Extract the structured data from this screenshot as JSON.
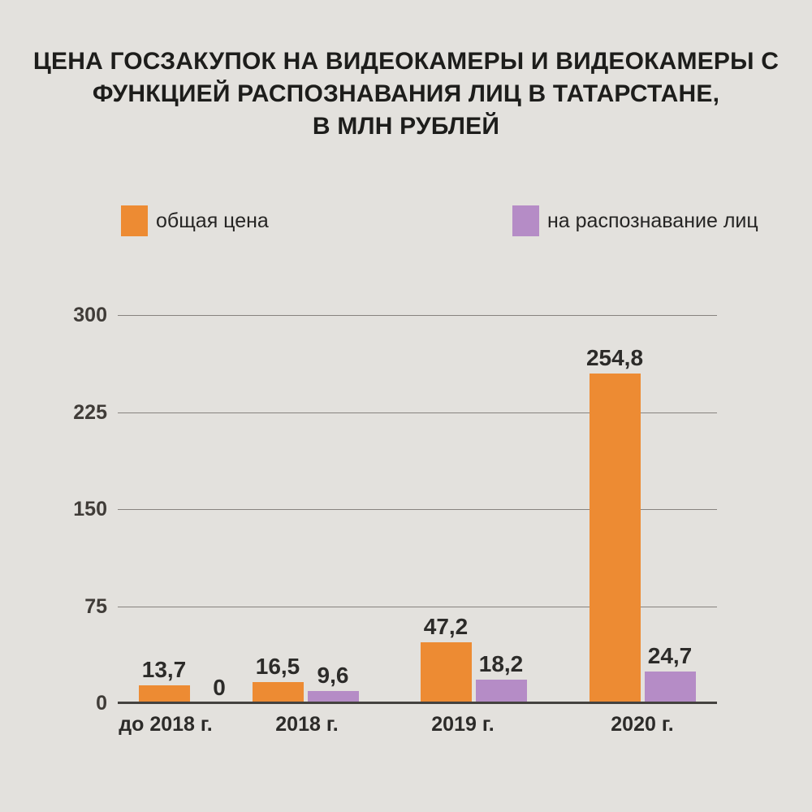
{
  "page": {
    "background": "#e3e1dd"
  },
  "chart_data": {
    "type": "bar",
    "title": "ЦЕНА ГОСЗАКУПОК НА ВИДЕОКАМЕРЫ И ВИДЕОКАМЕРЫ С ФУНКЦИЕЙ РАСПОЗНАВАНИЯ ЛИЦ В ТАТАРСТАНЕ, В МЛН РУБЛЕЙ",
    "title_lines": [
      "ЦЕНА ГОСЗАКУПОК НА ВИДЕОКАМЕРЫ И ВИДЕОКАМЕРЫ С",
      "ФУНКЦИЕЙ РАСПОЗНАВАНИЯ ЛИЦ В ТАТАРСТАНЕ,",
      "В МЛН РУБЛЕЙ"
    ],
    "categories": [
      "до 2018 г.",
      "2018 г.",
      "2019 г.",
      "2020 г."
    ],
    "series": [
      {
        "name": "общая цена",
        "color": "#ed8b33",
        "values": [
          13.7,
          16.5,
          47.2,
          254.8
        ],
        "value_labels": [
          "13,7",
          "16,5",
          "47,2",
          "254,8"
        ]
      },
      {
        "name": "на распознавание лиц",
        "color": "#b58cc6",
        "values": [
          0,
          9.6,
          18.2,
          24.7
        ],
        "value_labels": [
          "0",
          "9,6",
          "18,2",
          "24,7"
        ]
      }
    ],
    "xlabel": "",
    "ylabel": "",
    "ylim": [
      0,
      300
    ],
    "yticks": [
      0,
      75,
      150,
      225,
      300
    ],
    "grid": true,
    "legend_position": "top"
  }
}
